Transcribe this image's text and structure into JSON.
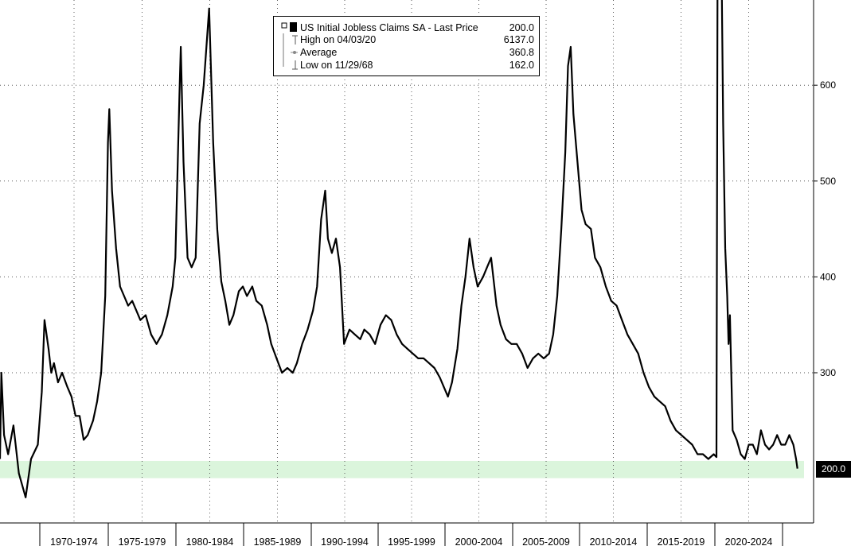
{
  "chart_data": {
    "type": "line",
    "series": [
      {
        "name": "US Initial Jobless Claims SA",
        "color": "#000000",
        "points": [
          [
            1967.0,
            210
          ],
          [
            1967.1,
            300
          ],
          [
            1967.3,
            235
          ],
          [
            1967.6,
            215
          ],
          [
            1968.0,
            245
          ],
          [
            1968.4,
            195
          ],
          [
            1968.9,
            170
          ],
          [
            1969.3,
            210
          ],
          [
            1969.8,
            225
          ],
          [
            1970.1,
            280
          ],
          [
            1970.3,
            355
          ],
          [
            1970.6,
            325
          ],
          [
            1970.8,
            300
          ],
          [
            1971.0,
            310
          ],
          [
            1971.3,
            290
          ],
          [
            1971.6,
            300
          ],
          [
            1972.0,
            285
          ],
          [
            1972.3,
            275
          ],
          [
            1972.6,
            255
          ],
          [
            1972.9,
            255
          ],
          [
            1973.2,
            230
          ],
          [
            1973.5,
            235
          ],
          [
            1973.9,
            250
          ],
          [
            1974.2,
            270
          ],
          [
            1974.5,
            300
          ],
          [
            1974.8,
            380
          ],
          [
            1975.0,
            540
          ],
          [
            1975.1,
            575
          ],
          [
            1975.3,
            490
          ],
          [
            1975.6,
            430
          ],
          [
            1975.9,
            390
          ],
          [
            1976.2,
            380
          ],
          [
            1976.5,
            370
          ],
          [
            1976.8,
            375
          ],
          [
            1977.1,
            365
          ],
          [
            1977.4,
            355
          ],
          [
            1977.8,
            360
          ],
          [
            1978.2,
            340
          ],
          [
            1978.6,
            330
          ],
          [
            1979.0,
            340
          ],
          [
            1979.4,
            360
          ],
          [
            1979.8,
            390
          ],
          [
            1980.0,
            420
          ],
          [
            1980.3,
            590
          ],
          [
            1980.4,
            640
          ],
          [
            1980.6,
            520
          ],
          [
            1980.9,
            420
          ],
          [
            1981.2,
            410
          ],
          [
            1981.5,
            420
          ],
          [
            1981.8,
            560
          ],
          [
            1982.1,
            600
          ],
          [
            1982.3,
            640
          ],
          [
            1982.5,
            680
          ],
          [
            1982.8,
            540
          ],
          [
            1983.1,
            450
          ],
          [
            1983.4,
            395
          ],
          [
            1983.7,
            375
          ],
          [
            1984.0,
            350
          ],
          [
            1984.3,
            360
          ],
          [
            1984.7,
            385
          ],
          [
            1985.0,
            390
          ],
          [
            1985.3,
            380
          ],
          [
            1985.7,
            390
          ],
          [
            1986.0,
            375
          ],
          [
            1986.4,
            370
          ],
          [
            1986.8,
            350
          ],
          [
            1987.1,
            330
          ],
          [
            1987.5,
            315
          ],
          [
            1987.9,
            300
          ],
          [
            1988.3,
            305
          ],
          [
            1988.7,
            300
          ],
          [
            1989.0,
            310
          ],
          [
            1989.4,
            330
          ],
          [
            1989.8,
            345
          ],
          [
            1990.2,
            365
          ],
          [
            1990.5,
            390
          ],
          [
            1990.8,
            460
          ],
          [
            1991.1,
            490
          ],
          [
            1991.3,
            440
          ],
          [
            1991.6,
            425
          ],
          [
            1991.9,
            440
          ],
          [
            1992.2,
            410
          ],
          [
            1992.5,
            330
          ],
          [
            1992.9,
            345
          ],
          [
            1993.3,
            340
          ],
          [
            1993.7,
            335
          ],
          [
            1994.0,
            345
          ],
          [
            1994.4,
            340
          ],
          [
            1994.8,
            330
          ],
          [
            1995.2,
            350
          ],
          [
            1995.6,
            360
          ],
          [
            1996.0,
            355
          ],
          [
            1996.4,
            340
          ],
          [
            1996.8,
            330
          ],
          [
            1997.2,
            325
          ],
          [
            1997.6,
            320
          ],
          [
            1998.0,
            315
          ],
          [
            1998.4,
            315
          ],
          [
            1998.8,
            310
          ],
          [
            1999.2,
            305
          ],
          [
            1999.6,
            295
          ],
          [
            1999.9,
            285
          ],
          [
            2000.2,
            275
          ],
          [
            2000.5,
            290
          ],
          [
            2000.9,
            325
          ],
          [
            2001.2,
            370
          ],
          [
            2001.5,
            400
          ],
          [
            2001.8,
            440
          ],
          [
            2002.1,
            410
          ],
          [
            2002.4,
            390
          ],
          [
            2002.8,
            400
          ],
          [
            2003.1,
            410
          ],
          [
            2003.4,
            420
          ],
          [
            2003.8,
            370
          ],
          [
            2004.1,
            350
          ],
          [
            2004.5,
            335
          ],
          [
            2004.9,
            330
          ],
          [
            2005.3,
            330
          ],
          [
            2005.7,
            320
          ],
          [
            2006.1,
            305
          ],
          [
            2006.5,
            315
          ],
          [
            2006.9,
            320
          ],
          [
            2007.3,
            315
          ],
          [
            2007.7,
            320
          ],
          [
            2008.0,
            340
          ],
          [
            2008.3,
            380
          ],
          [
            2008.6,
            450
          ],
          [
            2008.9,
            530
          ],
          [
            2009.1,
            620
          ],
          [
            2009.3,
            640
          ],
          [
            2009.5,
            570
          ],
          [
            2009.8,
            520
          ],
          [
            2010.1,
            470
          ],
          [
            2010.4,
            455
          ],
          [
            2010.8,
            450
          ],
          [
            2011.1,
            420
          ],
          [
            2011.5,
            410
          ],
          [
            2011.9,
            390
          ],
          [
            2012.3,
            375
          ],
          [
            2012.7,
            370
          ],
          [
            2013.1,
            355
          ],
          [
            2013.5,
            340
          ],
          [
            2013.9,
            330
          ],
          [
            2014.3,
            320
          ],
          [
            2014.7,
            300
          ],
          [
            2015.1,
            285
          ],
          [
            2015.5,
            275
          ],
          [
            2015.9,
            270
          ],
          [
            2016.3,
            265
          ],
          [
            2016.7,
            250
          ],
          [
            2017.1,
            240
          ],
          [
            2017.5,
            235
          ],
          [
            2017.9,
            230
          ],
          [
            2018.3,
            225
          ],
          [
            2018.7,
            215
          ],
          [
            2019.1,
            215
          ],
          [
            2019.5,
            210
          ],
          [
            2019.9,
            215
          ],
          [
            2020.1,
            212
          ],
          [
            2020.18,
            700
          ],
          [
            2020.22,
            700
          ],
          [
            2020.35,
            700
          ],
          [
            2020.5,
            700
          ],
          [
            2020.6,
            560
          ],
          [
            2020.75,
            430
          ],
          [
            2020.9,
            380
          ],
          [
            2021.0,
            330
          ],
          [
            2021.1,
            360
          ],
          [
            2021.3,
            240
          ],
          [
            2021.6,
            230
          ],
          [
            2021.9,
            215
          ],
          [
            2022.2,
            210
          ],
          [
            2022.5,
            225
          ],
          [
            2022.8,
            225
          ],
          [
            2023.1,
            215
          ],
          [
            2023.4,
            240
          ],
          [
            2023.7,
            225
          ],
          [
            2024.0,
            220
          ],
          [
            2024.3,
            225
          ],
          [
            2024.6,
            235
          ],
          [
            2024.9,
            225
          ],
          [
            2025.2,
            225
          ],
          [
            2025.5,
            235
          ],
          [
            2025.8,
            225
          ],
          [
            2026.0,
            210
          ],
          [
            2026.1,
            200
          ]
        ]
      }
    ],
    "xlim": [
      1967.0,
      2027.3
    ],
    "ylim": [
      150,
      690
    ],
    "x_ticks": [
      "1970-1974",
      "1975-1979",
      "1980-1984",
      "1985-1989",
      "1990-1994",
      "1995-1999",
      "2000-2004",
      "2005-2009",
      "2010-2014",
      "2015-2019",
      "2020-2024"
    ],
    "y_ticks": [
      300,
      400,
      500,
      600
    ],
    "band": {
      "from": 190,
      "to": 208,
      "color": "#dbf5dc"
    },
    "last_value_label": "200.0",
    "grid": true
  },
  "legend": {
    "title": "US Initial Jobless Claims SA - Last Price",
    "title_value": "200.0",
    "rows": [
      {
        "label": "High on 04/03/20",
        "value": "6137.0",
        "icon": "high-marker-icon"
      },
      {
        "label": "Average",
        "value": "360.8",
        "icon": "average-marker-icon"
      },
      {
        "label": "Low on 11/29/68",
        "value": "162.0",
        "icon": "low-marker-icon"
      }
    ]
  }
}
